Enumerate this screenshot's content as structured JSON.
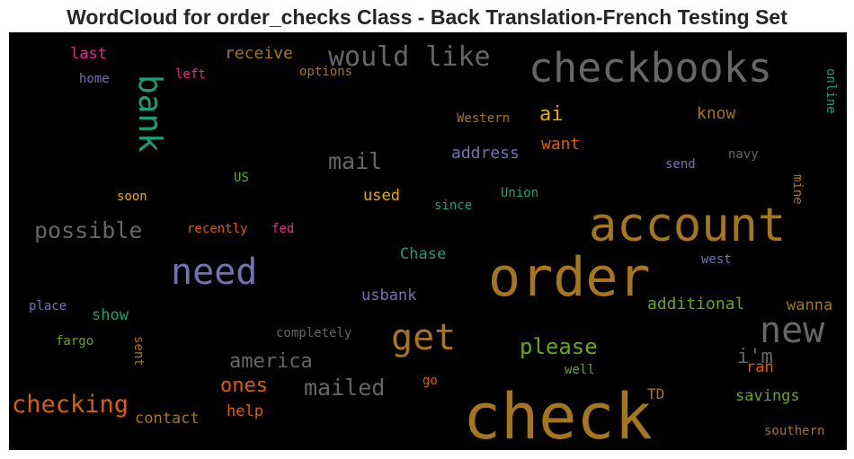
{
  "chart_data": {
    "type": "wordcloud",
    "title": "WordCloud for order_checks Class - Back Translation-French Testing Set",
    "background": "#000000",
    "words": [
      {
        "text": "check",
        "color": "#a6761d"
      },
      {
        "text": "order",
        "color": "#a6761d"
      },
      {
        "text": "account",
        "color": "#a6761d"
      },
      {
        "text": "checkbooks",
        "color": "#666666"
      },
      {
        "text": "need",
        "color": "#7570b3"
      },
      {
        "text": "get",
        "color": "#a6761d"
      },
      {
        "text": "new",
        "color": "#666666"
      },
      {
        "text": "bank",
        "color": "#1b9e77"
      },
      {
        "text": "would like",
        "color": "#666666"
      },
      {
        "text": "checking",
        "color": "#d95f02"
      },
      {
        "text": "possible",
        "color": "#666666"
      },
      {
        "text": "mail",
        "color": "#666666"
      },
      {
        "text": "mailed",
        "color": "#666666"
      },
      {
        "text": "please",
        "color": "#66a61e"
      },
      {
        "text": "america",
        "color": "#666666"
      },
      {
        "text": "ones",
        "color": "#d95f02"
      },
      {
        "text": "i'm",
        "color": "#666666"
      },
      {
        "text": "ai",
        "color": "#e6ab02"
      },
      {
        "text": "additional",
        "color": "#66a61e"
      },
      {
        "text": "know",
        "color": "#a6761d"
      },
      {
        "text": "want",
        "color": "#d95f02"
      },
      {
        "text": "address",
        "color": "#7570b3"
      },
      {
        "text": "savings",
        "color": "#66a61e"
      },
      {
        "text": "wanna",
        "color": "#a6761d"
      },
      {
        "text": "receive",
        "color": "#a6761d"
      },
      {
        "text": "usbank",
        "color": "#7570b3"
      },
      {
        "text": "contact",
        "color": "#a6761d"
      },
      {
        "text": "Chase",
        "color": "#1b9e77"
      },
      {
        "text": "used",
        "color": "#e6ab02"
      },
      {
        "text": "help",
        "color": "#d95f02"
      },
      {
        "text": "ran",
        "color": "#d95f02"
      },
      {
        "text": "last",
        "color": "#e7298a"
      },
      {
        "text": "show",
        "color": "#1b9e77"
      },
      {
        "text": "TD",
        "color": "#a6761d"
      },
      {
        "text": "Western",
        "color": "#a6761d"
      },
      {
        "text": "home",
        "color": "#7570b3"
      },
      {
        "text": "left",
        "color": "#e7298a"
      },
      {
        "text": "options",
        "color": "#a6761d"
      },
      {
        "text": "online",
        "color": "#1b9e77"
      },
      {
        "text": "send",
        "color": "#7570b3"
      },
      {
        "text": "navy",
        "color": "#666666"
      },
      {
        "text": "US",
        "color": "#66a61e"
      },
      {
        "text": "Union",
        "color": "#1b9e77"
      },
      {
        "text": "soon",
        "color": "#e6ab02"
      },
      {
        "text": "since",
        "color": "#1b9e77"
      },
      {
        "text": "mine",
        "color": "#a6761d"
      },
      {
        "text": "recently",
        "color": "#d95f02"
      },
      {
        "text": "fed",
        "color": "#e7298a"
      },
      {
        "text": "west",
        "color": "#7570b3"
      },
      {
        "text": "place",
        "color": "#7570b3"
      },
      {
        "text": "completely",
        "color": "#666666"
      },
      {
        "text": "fargo",
        "color": "#66a61e"
      },
      {
        "text": "sent",
        "color": "#a6761d"
      },
      {
        "text": "well",
        "color": "#66a61e"
      },
      {
        "text": "go",
        "color": "#d95f02"
      },
      {
        "text": "southern",
        "color": "#a6761d"
      }
    ]
  }
}
